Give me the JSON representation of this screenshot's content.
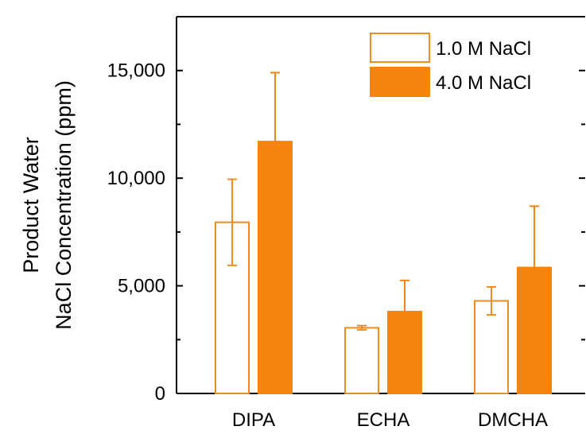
{
  "chart_data": {
    "type": "bar",
    "categories": [
      "DIPA",
      "ECHA",
      "DMCHA"
    ],
    "series": [
      {
        "name": "1.0 M NaCl",
        "values": [
          7950,
          3050,
          4300
        ],
        "errors": [
          2000,
          100,
          650
        ],
        "fill": "#ffffff",
        "stroke": "#f28c1c"
      },
      {
        "name": "4.0 M NaCl",
        "values": [
          11700,
          3800,
          5850
        ],
        "errors": [
          3200,
          1450,
          2850
        ],
        "fill": "#f58410",
        "stroke": "#f58410"
      }
    ],
    "ylabel_lines": [
      "Product Water",
      "NaCl Concentration (ppm)"
    ],
    "xlabel": "",
    "ylim": [
      0,
      17500
    ],
    "yticks": [
      0,
      5000,
      10000,
      15000
    ],
    "ytick_labels": [
      "0",
      "5,000",
      "10,000",
      "15,000"
    ],
    "legend_position": "top-right",
    "grid": false
  }
}
